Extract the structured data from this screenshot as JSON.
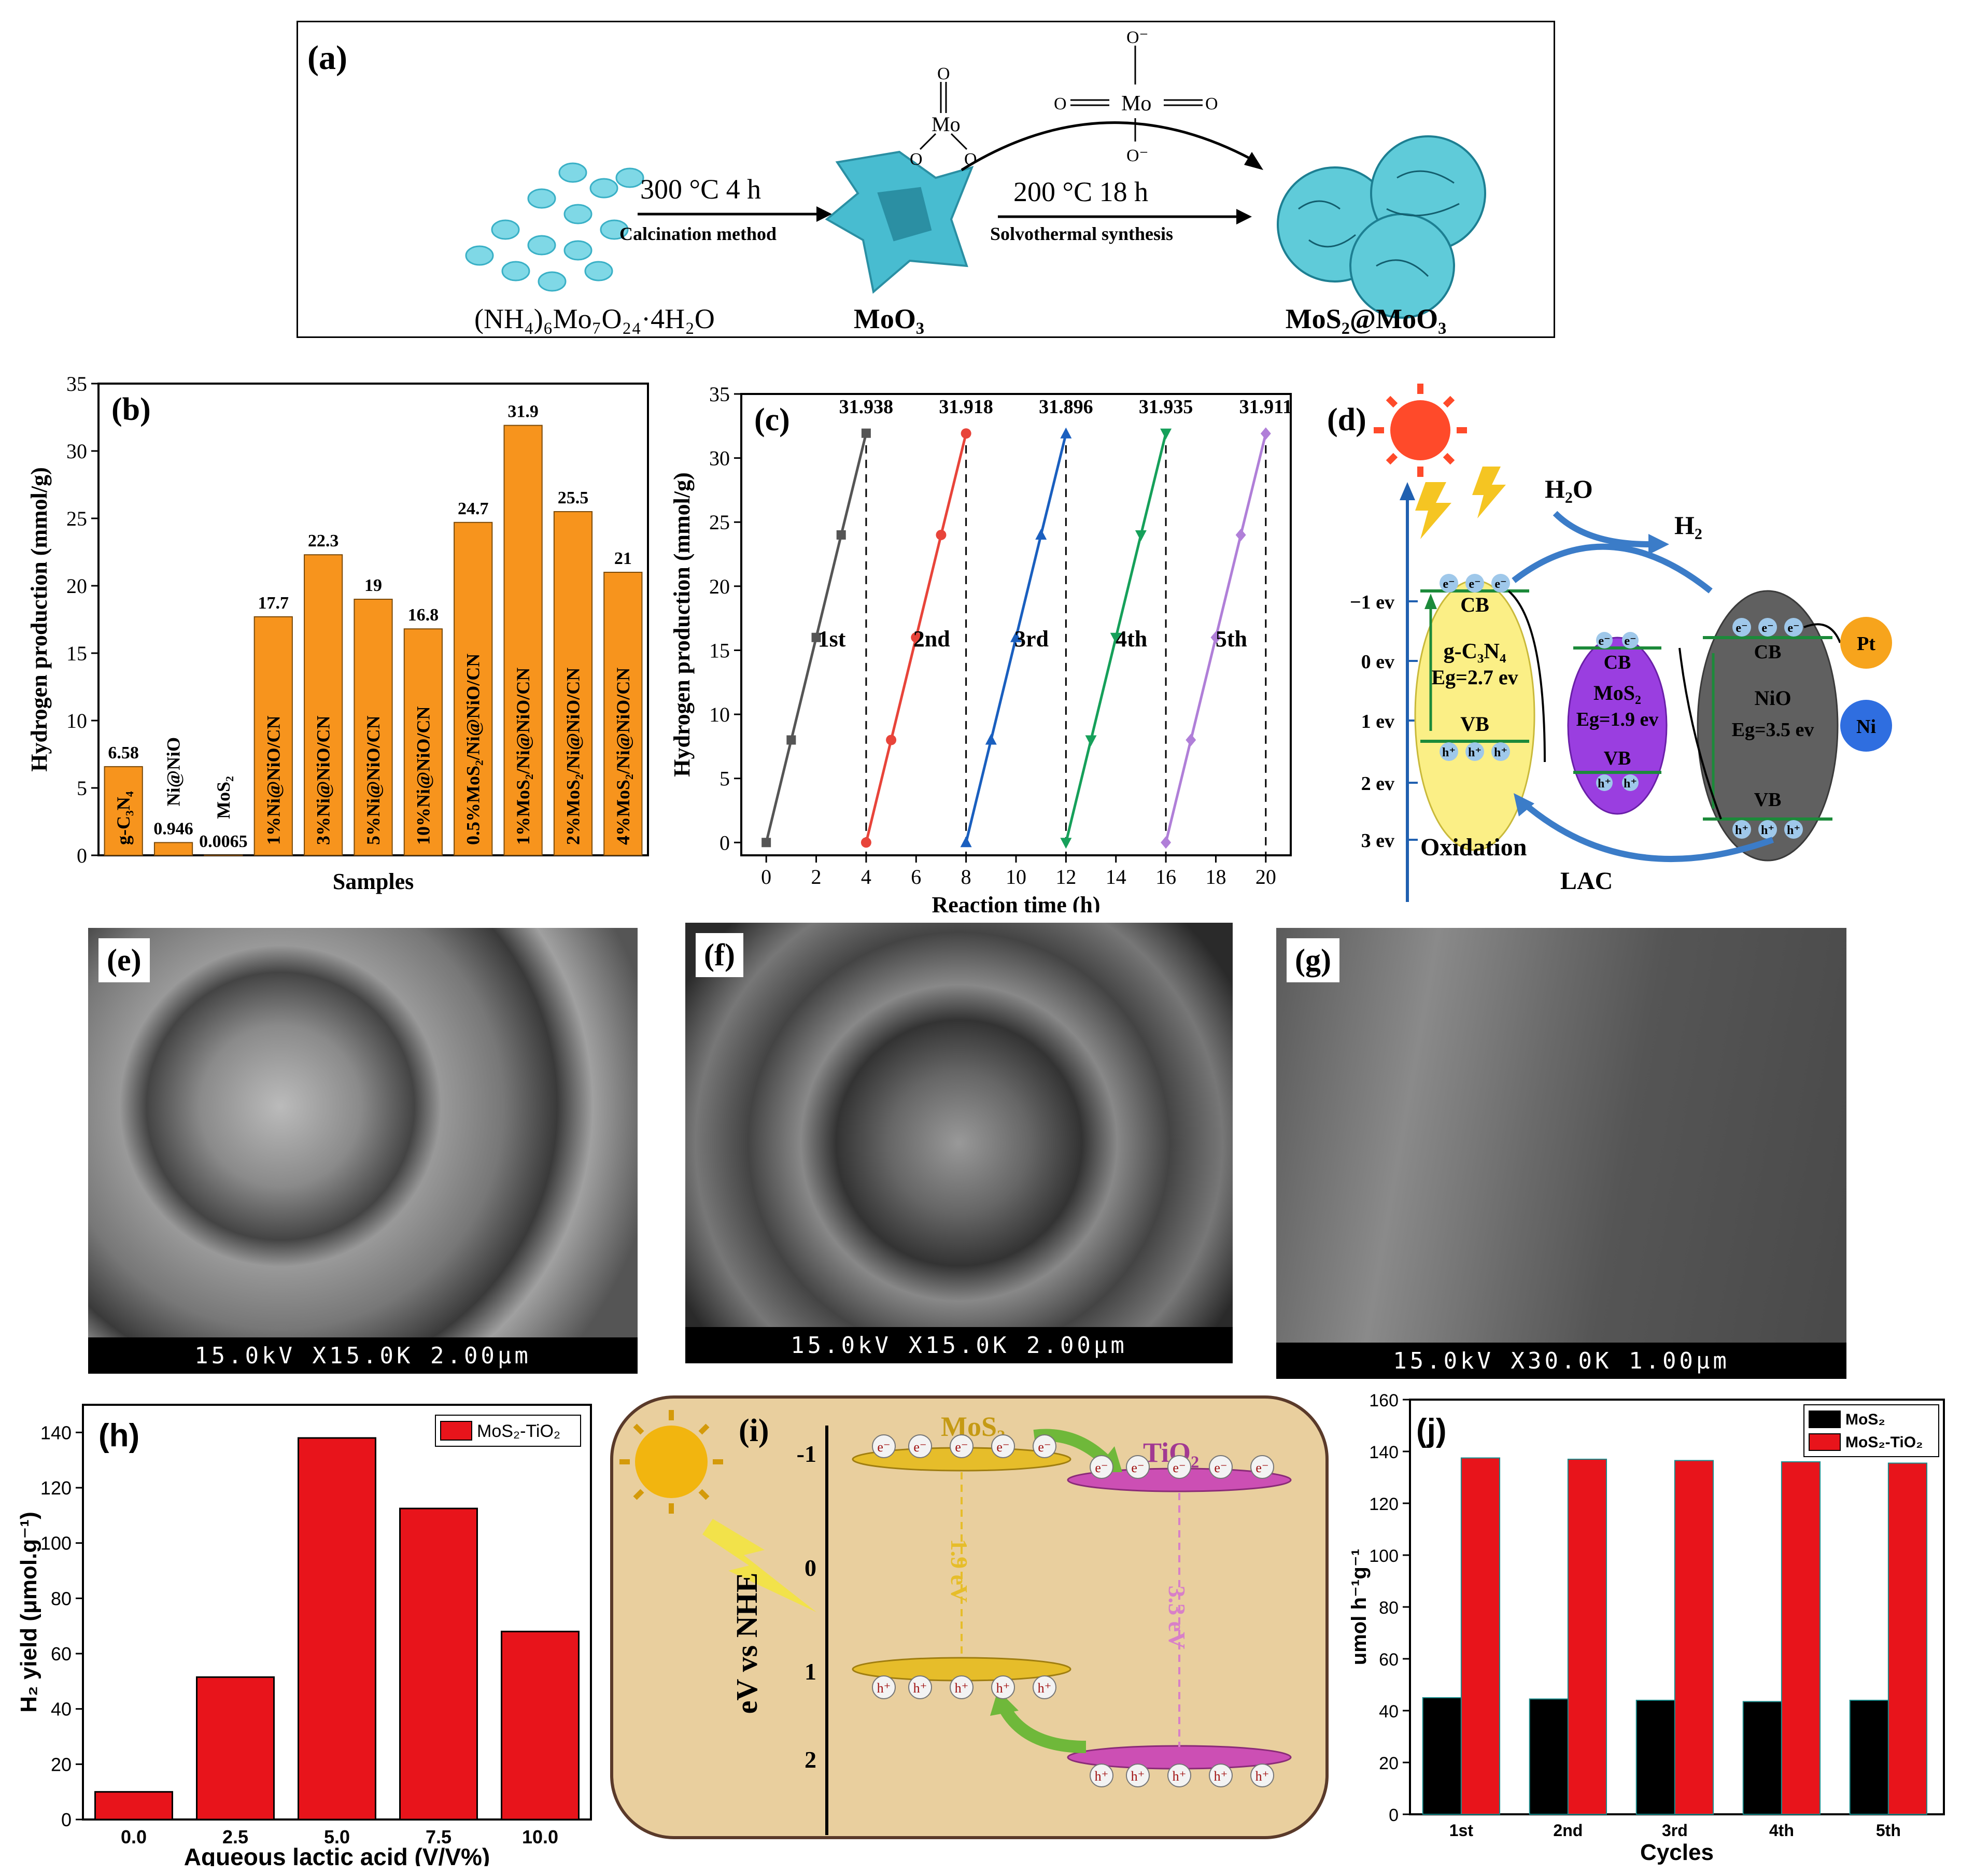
{
  "panel_a": {
    "label": "(a)",
    "step1_temp": "300 °C  4 h",
    "step1_method": "Calcination method",
    "step2_temp": "200 °C  18 h",
    "step2_method": "Solvothermal synthesis",
    "precursor": "(NH₄)₆Mo₇O₂₄·4H₂O",
    "intermediate": "MoO₃",
    "product": "MoS₂@MoO₃",
    "molecule_atom": "Mo",
    "molecule_o": "O",
    "molecule_ion": "O⁻"
  },
  "panel_b": {
    "label": "(b)",
    "xlabel": "Samples",
    "ylabel": "Hydrogen production (mmol/g)",
    "chart_data": {
      "type": "bar",
      "categories": [
        "g-C₃N₄",
        "Ni@NiO",
        "MoS₂",
        "1%Ni@NiO/CN",
        "3%Ni@NiO/CN",
        "5%Ni@NiO/CN",
        "10%Ni@NiO/CN",
        "0.5%MoS₂/Ni@NiO/CN",
        "1%MoS₂/Ni@NiO/CN",
        "2%MoS₂/Ni@NiO/CN",
        "4%MoS₂/Ni@NiO/CN"
      ],
      "values": [
        6.58,
        0.946,
        0.0065,
        17.7,
        22.3,
        19,
        16.8,
        24.7,
        31.9,
        25.5,
        21
      ],
      "value_labels": [
        "6.58",
        "0.946",
        "0.0065",
        "17.7",
        "22.3",
        "19",
        "16.8",
        "24.7",
        "31.9",
        "25.5",
        "21"
      ],
      "yticks": [
        "0",
        "5",
        "10",
        "15",
        "20",
        "25",
        "30",
        "35"
      ],
      "ylim": [
        0,
        35
      ],
      "color": "#f7941d"
    }
  },
  "panel_c": {
    "label": "(c)",
    "xlabel": "Reaction time (h)",
    "ylabel": "Hydrogen production (mmol/g)",
    "chart_data": {
      "type": "line",
      "xlim": [
        -1,
        21
      ],
      "ylim": [
        -1,
        35
      ],
      "xticks": [
        "0",
        "2",
        "4",
        "6",
        "8",
        "10",
        "12",
        "14",
        "16",
        "18",
        "20"
      ],
      "yticks": [
        "0",
        "5",
        "10",
        "15",
        "20",
        "25",
        "30",
        "35"
      ],
      "series": [
        {
          "name": "1st",
          "color": "#555555",
          "marker": "square",
          "x": [
            0,
            1,
            2,
            3,
            4
          ],
          "y": [
            0,
            8,
            16,
            24,
            31.938
          ],
          "end_label": "31.938"
        },
        {
          "name": "2nd",
          "color": "#e8443a",
          "marker": "circle",
          "x": [
            4,
            5,
            6,
            7,
            8
          ],
          "y": [
            0,
            8,
            16,
            24,
            31.918
          ],
          "end_label": "31.918"
        },
        {
          "name": "3rd",
          "color": "#1a5fbf",
          "marker": "triangle",
          "x": [
            8,
            9,
            10,
            11,
            12
          ],
          "y": [
            0,
            8,
            16,
            24,
            31.896
          ],
          "end_label": "31.896"
        },
        {
          "name": "4th",
          "color": "#16a05a",
          "marker": "triangle-down",
          "x": [
            12,
            13,
            14,
            15,
            16
          ],
          "y": [
            0,
            8,
            16,
            24,
            31.935
          ],
          "end_label": "31.935"
        },
        {
          "name": "5th",
          "color": "#b07fd8",
          "marker": "diamond",
          "x": [
            16,
            17,
            18,
            19,
            20
          ],
          "y": [
            0,
            8,
            16,
            24,
            31.911
          ],
          "end_label": "31.911"
        }
      ],
      "dividers_x": [
        4,
        8,
        12,
        16,
        20
      ]
    }
  },
  "panel_d": {
    "label": "(d)",
    "h2o": "H₂O",
    "h2": "H₂",
    "energy_ticks": [
      "−1 ev",
      "0 ev",
      "1 ev",
      "2 ev",
      "3 ev"
    ],
    "gcn_name": "g-C₃N₄",
    "gcn_eg": "Eg=2.7 ev",
    "mos2_name": "MoS₂",
    "mos2_eg": "Eg=1.9 ev",
    "nio_name": "NiO",
    "nio_eg": "Eg=3.5 ev",
    "cb": "CB",
    "vb": "VB",
    "electron": "e⁻",
    "hole": "h⁺",
    "pt": "Pt",
    "ni": "Ni",
    "oxidation": "Oxidation",
    "lac": "LAC"
  },
  "panel_e": {
    "label": "(e)",
    "bar": "15.0kV X15.0K 2.00μm"
  },
  "panel_f": {
    "label": "(f)",
    "bar": "15.0kV X15.0K 2.00μm"
  },
  "panel_g": {
    "label": "(g)",
    "bar": "15.0kV X30.0K 1.00μm"
  },
  "panel_h": {
    "label": "(h)",
    "xlabel": "Aqueous lactic acid (V/V%)",
    "ylabel": "H₂ yield (μmol.g⁻¹)",
    "legend": "MoS₂-TiO₂",
    "chart_data": {
      "type": "bar",
      "categories": [
        "0.0",
        "2.5",
        "5.0",
        "7.5",
        "10.0"
      ],
      "values": [
        10,
        51.5,
        138,
        112.5,
        68
      ],
      "yticks": [
        "0",
        "20",
        "40",
        "60",
        "80",
        "100",
        "120",
        "140"
      ],
      "ylim": [
        0,
        150
      ],
      "color": "#e8141b"
    }
  },
  "panel_i": {
    "label": "(i)",
    "yaxis": "eV vs NHE",
    "ticks": [
      "-1",
      "0",
      "1",
      "2"
    ],
    "mos2": "MoS₂",
    "tio2": "TiO₂",
    "gap_mos2": "1.9 eV",
    "gap_tio2": "3.3 eV",
    "electron": "e⁻",
    "hole": "h⁺"
  },
  "panel_j": {
    "label": "(j)",
    "xlabel": "Cycles",
    "ylabel": "umol h⁻¹g⁻¹",
    "chart_data": {
      "type": "bar",
      "categories": [
        "1st",
        "2nd",
        "3rd",
        "4th",
        "5th"
      ],
      "series": [
        {
          "name": "MoS₂",
          "color": "#000000",
          "values": [
            45,
            44.5,
            44,
            43.5,
            44
          ]
        },
        {
          "name": "MoS₂-TiO₂",
          "color": "#e8141b",
          "values": [
            137.5,
            137,
            136.5,
            136,
            135.5
          ]
        }
      ],
      "yticks": [
        "0",
        "20",
        "40",
        "60",
        "80",
        "100",
        "120",
        "140",
        "160"
      ],
      "ylim": [
        0,
        160
      ]
    }
  }
}
